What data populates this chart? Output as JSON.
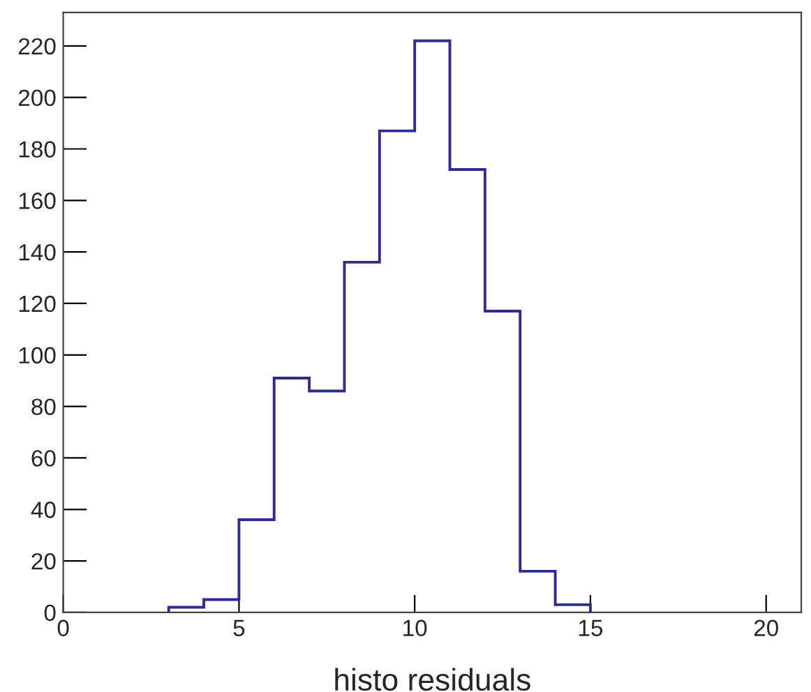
{
  "chart_data": {
    "type": "histogram",
    "xlabel": "histo residuals",
    "bins": [
      3,
      4,
      5,
      6,
      7,
      8,
      9,
      10,
      11,
      12,
      13,
      14,
      15
    ],
    "values": [
      2,
      5,
      36,
      91,
      86,
      136,
      187,
      222,
      172,
      117,
      16,
      3
    ],
    "color": "#2e2e8a",
    "xlim": [
      0,
      21
    ],
    "ylim": [
      0,
      233
    ],
    "xticks": [
      0,
      5,
      10,
      15,
      20
    ],
    "yticks": [
      0,
      20,
      40,
      60,
      80,
      100,
      120,
      140,
      160,
      180,
      200,
      220
    ],
    "grid": false
  }
}
